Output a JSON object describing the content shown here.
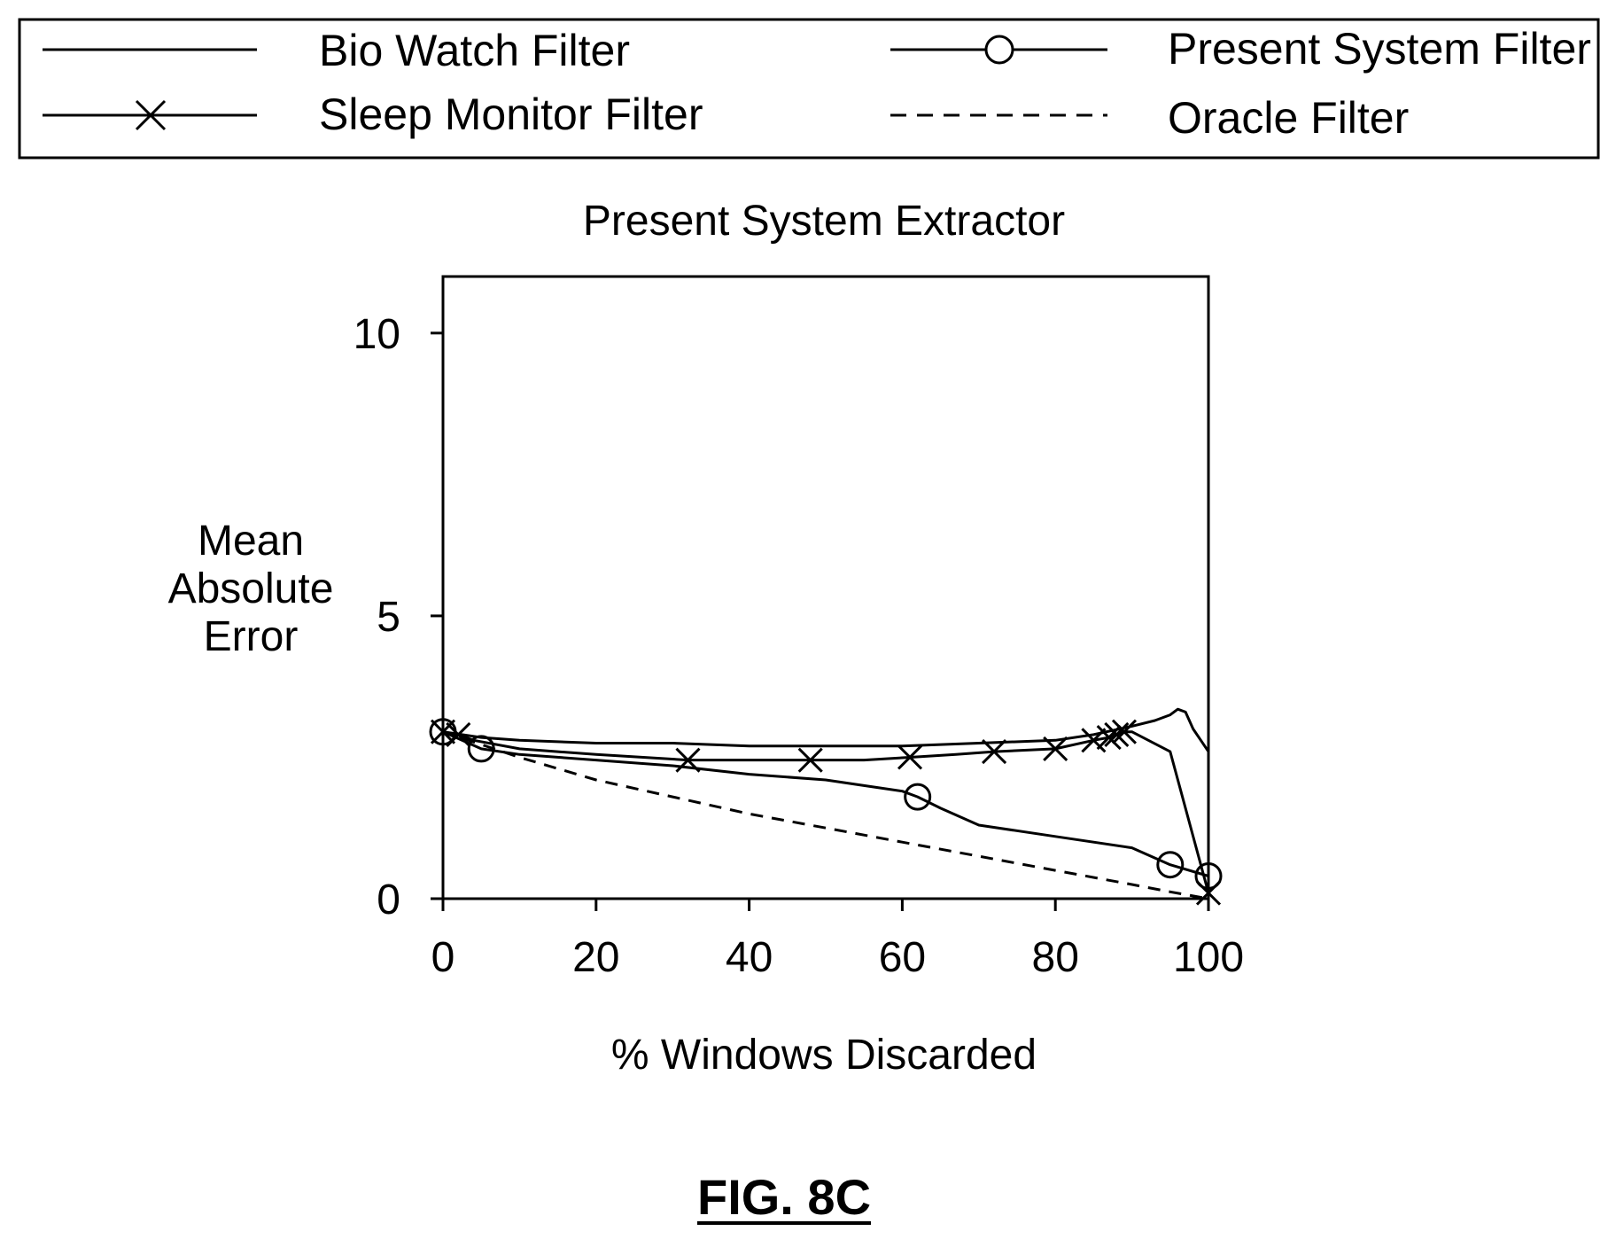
{
  "figure_label": "FIG. 8C",
  "legend": {
    "position": "top",
    "entries": [
      {
        "label": "Bio Watch Filter",
        "line": "solid",
        "marker": "none"
      },
      {
        "label": "Present System Filter",
        "line": "solid",
        "marker": "circle"
      },
      {
        "label": "Sleep Monitor Filter",
        "line": "solid",
        "marker": "x"
      },
      {
        "label": "Oracle Filter",
        "line": "dashed",
        "marker": "none"
      }
    ]
  },
  "chart_data": {
    "type": "line",
    "title": "Present System Extractor",
    "xlabel": "% Windows Discarded",
    "ylabel_lines": [
      "Mean",
      "Absolute",
      "Error"
    ],
    "xlim": [
      0,
      100
    ],
    "ylim": [
      0,
      11
    ],
    "xticks": [
      0,
      20,
      40,
      60,
      80,
      100
    ],
    "xtick_labels": [
      "0",
      "20",
      "40",
      "60",
      "80",
      "100"
    ],
    "yticks": [
      0,
      5,
      10
    ],
    "ytick_labels": [
      "0",
      "5",
      "10"
    ],
    "grid": false,
    "series": [
      {
        "name": "Bio Watch Filter",
        "line": "solid",
        "marker": "none",
        "color": "#000000",
        "x": [
          0,
          5,
          10,
          20,
          30,
          40,
          50,
          60,
          70,
          80,
          85,
          90,
          93,
          95,
          96,
          97,
          98,
          99,
          100
        ],
        "y": [
          2.95,
          2.85,
          2.8,
          2.75,
          2.75,
          2.7,
          2.7,
          2.7,
          2.75,
          2.8,
          2.9,
          3.05,
          3.15,
          3.25,
          3.35,
          3.3,
          3.0,
          2.8,
          2.6
        ]
      },
      {
        "name": "Present System Filter",
        "line": "solid",
        "marker": "circle",
        "color": "#000000",
        "x": [
          0,
          5,
          10,
          20,
          30,
          40,
          50,
          55,
          60,
          62,
          65,
          70,
          80,
          90,
          95,
          100
        ],
        "y": [
          2.95,
          2.65,
          2.55,
          2.45,
          2.35,
          2.2,
          2.1,
          2.0,
          1.9,
          1.8,
          1.6,
          1.3,
          1.1,
          0.9,
          0.6,
          0.4
        ],
        "marker_x": [
          0,
          5,
          62,
          95,
          100
        ],
        "marker_y": [
          2.95,
          2.65,
          1.8,
          0.6,
          0.4
        ]
      },
      {
        "name": "Sleep Monitor Filter",
        "line": "solid",
        "marker": "x",
        "color": "#000000",
        "x": [
          0,
          2,
          4,
          10,
          20,
          32,
          40,
          48,
          55,
          61,
          67,
          72,
          80,
          85,
          87,
          88,
          89,
          90,
          95,
          100
        ],
        "y": [
          2.95,
          2.9,
          2.8,
          2.65,
          2.55,
          2.45,
          2.45,
          2.45,
          2.45,
          2.5,
          2.55,
          2.6,
          2.65,
          2.8,
          2.85,
          2.9,
          2.95,
          2.95,
          2.6,
          0.1
        ],
        "marker_x": [
          0,
          2,
          32,
          48,
          61,
          72,
          80,
          85,
          87,
          88,
          89,
          100
        ],
        "marker_y": [
          2.95,
          2.9,
          2.45,
          2.45,
          2.5,
          2.6,
          2.65,
          2.8,
          2.85,
          2.9,
          2.95,
          0.1
        ]
      },
      {
        "name": "Oracle Filter",
        "line": "dashed",
        "marker": "none",
        "color": "#000000",
        "x": [
          0,
          10,
          20,
          30,
          40,
          50,
          60,
          70,
          80,
          90,
          95,
          100
        ],
        "y": [
          2.95,
          2.5,
          2.1,
          1.8,
          1.5,
          1.25,
          1.0,
          0.75,
          0.5,
          0.25,
          0.12,
          0.0
        ]
      }
    ]
  }
}
